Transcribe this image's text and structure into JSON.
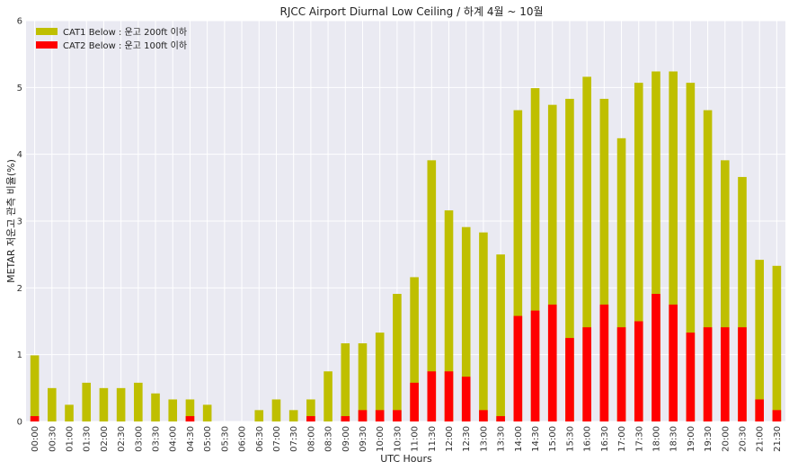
{
  "chart_data": {
    "type": "bar",
    "stacked": "overlay",
    "title": "RJCC Airport Diurnal Low Ceiling / 하계 4월 ~ 10월",
    "xlabel": "UTC Hours",
    "ylabel": "METAR 저운고 관측 비율(%)",
    "ylim": [
      0,
      6
    ],
    "yticks": [
      0,
      1,
      2,
      3,
      4,
      5,
      6
    ],
    "grid": true,
    "legend_position": "top-left",
    "categories": [
      "00:00",
      "00:30",
      "01:00",
      "01:30",
      "02:00",
      "02:30",
      "03:00",
      "03:30",
      "04:00",
      "04:30",
      "05:00",
      "05:30",
      "06:00",
      "06:30",
      "07:00",
      "07:30",
      "08:00",
      "08:30",
      "09:00",
      "09:30",
      "10:00",
      "10:30",
      "11:00",
      "11:30",
      "12:00",
      "12:30",
      "13:00",
      "13:30",
      "14:00",
      "14:30",
      "15:00",
      "15:30",
      "16:00",
      "16:30",
      "17:00",
      "17:30",
      "18:00",
      "18:30",
      "19:00",
      "19:30",
      "20:00",
      "20:30",
      "21:00",
      "21:30"
    ],
    "series": [
      {
        "name": "CAT1 Below : 운고 200ft 이하",
        "color": "#bfbf00",
        "values": [
          0.99,
          0.5,
          0.25,
          0.58,
          0.5,
          0.5,
          0.58,
          0.42,
          0.33,
          0.33,
          0.25,
          0,
          0,
          0.17,
          0.33,
          0.17,
          0.33,
          0.75,
          1.17,
          1.17,
          1.33,
          1.91,
          2.16,
          3.91,
          3.16,
          2.91,
          2.83,
          2.5,
          4.66,
          4.99,
          4.74,
          4.83,
          5.16,
          4.83,
          4.24,
          5.07,
          5.24,
          5.24,
          5.07,
          4.66,
          3.91,
          3.66,
          2.42,
          2.33
        ]
      },
      {
        "name": "CAT2 Below : 운고 100ft 이하",
        "color": "#ff0000",
        "values": [
          0.08,
          0,
          0,
          0,
          0,
          0,
          0,
          0,
          0,
          0.08,
          0,
          0,
          0,
          0,
          0,
          0,
          0.08,
          0,
          0.08,
          0.17,
          0.17,
          0.17,
          0.58,
          0.75,
          0.75,
          0.67,
          0.17,
          0.08,
          1.58,
          1.66,
          1.75,
          1.25,
          1.41,
          1.75,
          1.41,
          1.5,
          1.91,
          1.75,
          1.33,
          1.41,
          1.41,
          1.41,
          0.33,
          0.17
        ]
      }
    ]
  }
}
